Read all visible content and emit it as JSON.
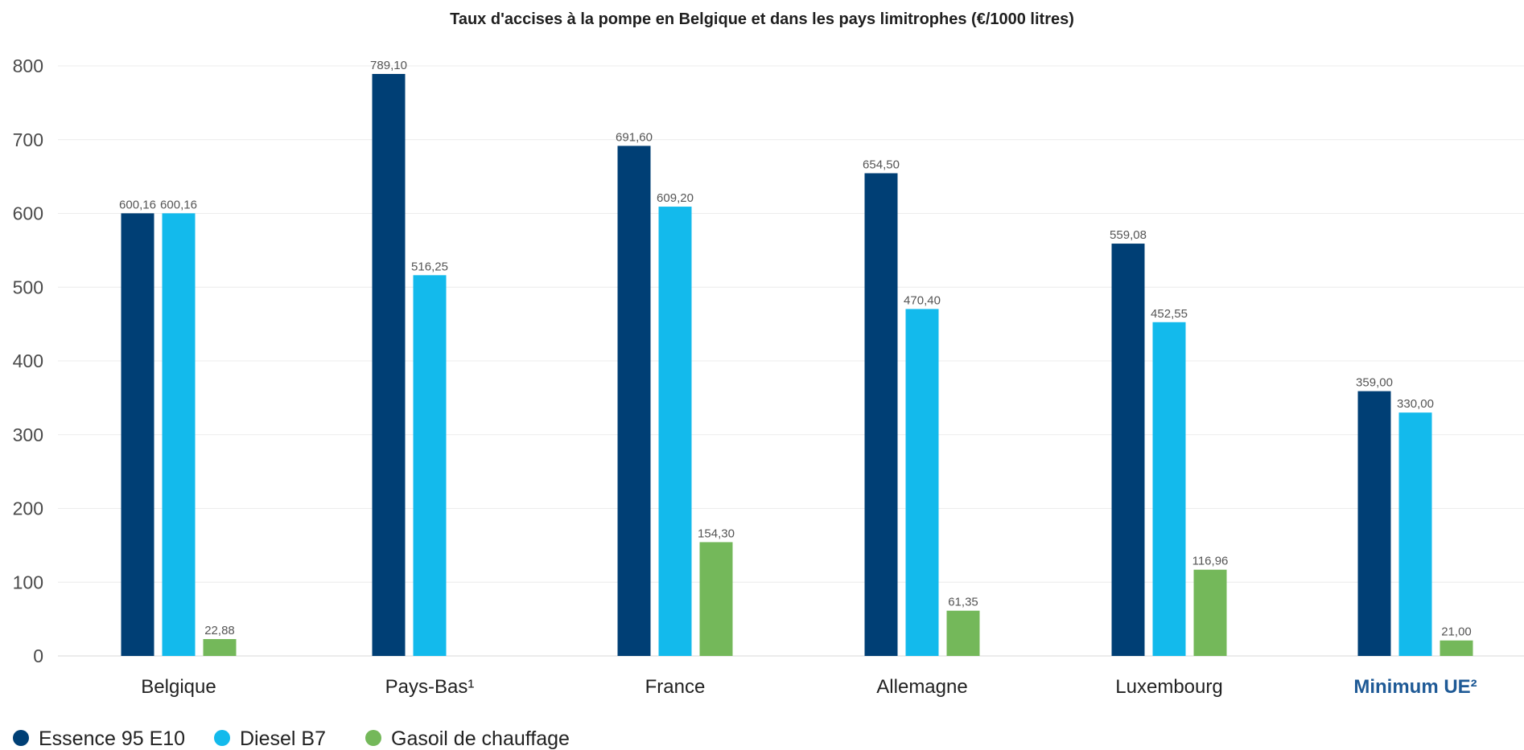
{
  "chart_data": {
    "type": "bar",
    "title": "Taux d'accises à la pompe en Belgique et dans les pays limitrophes (€/1000 litres)",
    "xlabel": "",
    "ylabel": "",
    "ylim": [
      0,
      800
    ],
    "yticks": [
      "0",
      "100",
      "200",
      "300",
      "400",
      "500",
      "600",
      "700",
      "800"
    ],
    "grid": true,
    "legend_position": "bottom-left",
    "categories": [
      "Belgique",
      "Pays-Bas¹",
      "France",
      "Allemagne",
      "Luxembourg",
      "Minimum UE²"
    ],
    "highlight_category": "Minimum UE²",
    "series": [
      {
        "name": "Essence 95 E10",
        "color": "#003f75",
        "values": [
          600.16,
          789.1,
          691.6,
          654.5,
          559.08,
          359.0
        ],
        "labels": [
          "600,16",
          "789,10",
          "691,60",
          "654,50",
          "559,08",
          "359,00"
        ]
      },
      {
        "name": "Diesel B7",
        "color": "#13baec",
        "values": [
          600.16,
          516.25,
          609.2,
          470.4,
          452.55,
          330.0
        ],
        "labels": [
          "600,16",
          "516,25",
          "609,20",
          "470,40",
          "452,55",
          "330,00"
        ]
      },
      {
        "name": "Gasoil de chauffage",
        "color": "#74b85a",
        "values": [
          22.88,
          null,
          154.3,
          61.35,
          116.96,
          21.0
        ],
        "labels": [
          "22,88",
          null,
          "154,30",
          "61,35",
          "116,96",
          "21,00"
        ]
      }
    ]
  }
}
